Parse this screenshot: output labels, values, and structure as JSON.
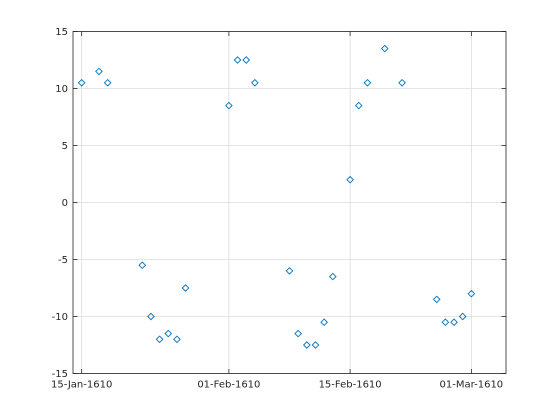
{
  "chart_data": {
    "type": "scatter",
    "marker": "diamond",
    "marker_color": "#0072bd",
    "grid": true,
    "x_axis_type": "date",
    "xlim": [
      "1610-01-14",
      "1610-03-05"
    ],
    "ylim": [
      -15,
      15
    ],
    "xticks": [
      {
        "value": "1610-01-15",
        "label": "15-Jan-1610"
      },
      {
        "value": "1610-02-01",
        "label": "01-Feb-1610"
      },
      {
        "value": "1610-02-15",
        "label": "15-Feb-1610"
      },
      {
        "value": "1610-03-01",
        "label": "01-Mar-1610"
      }
    ],
    "yticks": [
      {
        "value": 15,
        "label": "15"
      },
      {
        "value": 10,
        "label": "10"
      },
      {
        "value": 5,
        "label": "5"
      },
      {
        "value": 0,
        "label": "0"
      },
      {
        "value": -5,
        "label": "-5"
      },
      {
        "value": -10,
        "label": "-10"
      },
      {
        "value": -15,
        "label": "-15"
      }
    ],
    "points": [
      {
        "x": "1610-01-15",
        "y": 10.5
      },
      {
        "x": "1610-01-17",
        "y": 11.5
      },
      {
        "x": "1610-01-18",
        "y": 10.5
      },
      {
        "x": "1610-01-22",
        "y": -5.5
      },
      {
        "x": "1610-01-23",
        "y": -10
      },
      {
        "x": "1610-01-24",
        "y": -12
      },
      {
        "x": "1610-01-25",
        "y": -11.5
      },
      {
        "x": "1610-01-26",
        "y": -12
      },
      {
        "x": "1610-01-27",
        "y": -7.5
      },
      {
        "x": "1610-02-01",
        "y": 8.5
      },
      {
        "x": "1610-02-02",
        "y": 12.5
      },
      {
        "x": "1610-02-03",
        "y": 12.5
      },
      {
        "x": "1610-02-04",
        "y": 10.5
      },
      {
        "x": "1610-02-08",
        "y": -6
      },
      {
        "x": "1610-02-09",
        "y": -11.5
      },
      {
        "x": "1610-02-10",
        "y": -12.5
      },
      {
        "x": "1610-02-11",
        "y": -12.5
      },
      {
        "x": "1610-02-12",
        "y": -10.5
      },
      {
        "x": "1610-02-13",
        "y": -6.5
      },
      {
        "x": "1610-02-15",
        "y": 2
      },
      {
        "x": "1610-02-16",
        "y": 8.5
      },
      {
        "x": "1610-02-17",
        "y": 10.5
      },
      {
        "x": "1610-02-19",
        "y": 13.5
      },
      {
        "x": "1610-02-21",
        "y": 10.5
      },
      {
        "x": "1610-02-25",
        "y": -8.5
      },
      {
        "x": "1610-02-26",
        "y": -10.5
      },
      {
        "x": "1610-02-27",
        "y": -10.5
      },
      {
        "x": "1610-02-28",
        "y": -10
      },
      {
        "x": "1610-03-01",
        "y": -8
      }
    ]
  }
}
